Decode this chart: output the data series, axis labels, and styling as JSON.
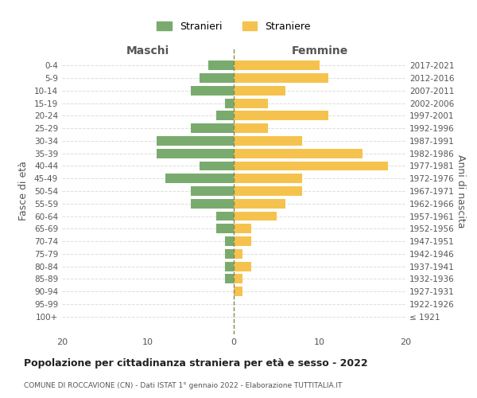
{
  "age_groups": [
    "100+",
    "95-99",
    "90-94",
    "85-89",
    "80-84",
    "75-79",
    "70-74",
    "65-69",
    "60-64",
    "55-59",
    "50-54",
    "45-49",
    "40-44",
    "35-39",
    "30-34",
    "25-29",
    "20-24",
    "15-19",
    "10-14",
    "5-9",
    "0-4"
  ],
  "birth_years": [
    "≤ 1921",
    "1922-1926",
    "1927-1931",
    "1932-1936",
    "1937-1941",
    "1942-1946",
    "1947-1951",
    "1952-1956",
    "1957-1961",
    "1962-1966",
    "1967-1971",
    "1972-1976",
    "1977-1981",
    "1982-1986",
    "1987-1991",
    "1992-1996",
    "1997-2001",
    "2002-2006",
    "2007-2011",
    "2012-2016",
    "2017-2021"
  ],
  "maschi": [
    0,
    0,
    0,
    1,
    1,
    1,
    1,
    2,
    2,
    5,
    5,
    8,
    4,
    9,
    9,
    5,
    2,
    1,
    5,
    4,
    3
  ],
  "femmine": [
    0,
    0,
    1,
    1,
    2,
    1,
    2,
    2,
    5,
    6,
    8,
    8,
    18,
    15,
    8,
    4,
    11,
    4,
    6,
    11,
    10
  ],
  "color_maschi": "#7aab6e",
  "color_femmine": "#f5c34d",
  "title": "Popolazione per cittadinanza straniera per età e sesso - 2022",
  "subtitle": "COMUNE DI ROCCAVIONE (CN) - Dati ISTAT 1° gennaio 2022 - Elaborazione TUTTITALIA.IT",
  "xlabel_left": "Maschi",
  "xlabel_right": "Femmine",
  "ylabel_left": "Fasce di età",
  "ylabel_right": "Anni di nascita",
  "legend_maschi": "Stranieri",
  "legend_femmine": "Straniere",
  "xlim": 20,
  "bg_color": "#ffffff",
  "grid_color": "#dddddd"
}
